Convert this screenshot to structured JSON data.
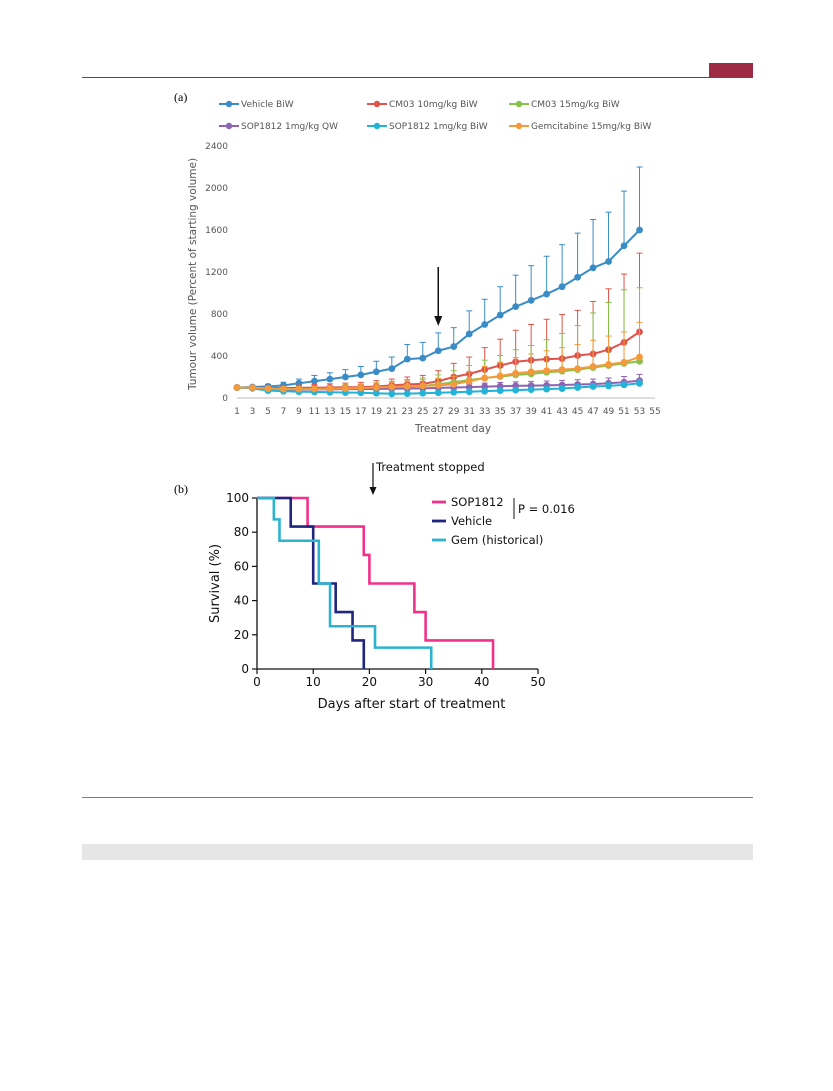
{
  "page": {
    "panel_a_label": "(a)",
    "panel_b_label": "(b)"
  },
  "colors": {
    "rule": "#9e2a44",
    "vehicle_biw": "#3a8cc6",
    "cm03_10": "#e0534a",
    "cm03_15": "#86c24b",
    "sop1812_qw": "#8d63b4",
    "sop1812_biw": "#22b3d6",
    "gem_15": "#f59a3c",
    "km_sop1812": "#f0328a",
    "km_vehicle": "#1f2680",
    "km_gem": "#2bb3cf"
  },
  "chart_data": [
    {
      "type": "line",
      "title": "",
      "xlabel": "Treatment day",
      "ylabel": "Tumour volume (Percent of starting volume)",
      "xlim": [
        1,
        55
      ],
      "ylim": [
        0,
        2400
      ],
      "yticks": [
        "0",
        "400",
        "800",
        "1200",
        "1600",
        "2000",
        "2400"
      ],
      "xticks": [
        "1",
        "3",
        "5",
        "7",
        "9",
        "11",
        "13",
        "15",
        "17",
        "19",
        "21",
        "23",
        "25",
        "27",
        "29",
        "31",
        "33",
        "35",
        "37",
        "39",
        "41",
        "43",
        "45",
        "47",
        "49",
        "51",
        "53",
        "55"
      ],
      "grid": false,
      "legend_position": "top",
      "annotation": "arrow at day 27",
      "x": [
        1,
        3,
        5,
        7,
        9,
        11,
        13,
        15,
        17,
        19,
        21,
        23,
        25,
        27,
        29,
        31,
        33,
        35,
        37,
        39,
        41,
        43,
        45,
        47,
        49,
        51,
        53
      ],
      "series": [
        {
          "name": "Vehicle BiW",
          "color": "#3a8cc6",
          "values": [
            100,
            105,
            110,
            120,
            140,
            160,
            180,
            200,
            220,
            250,
            280,
            370,
            380,
            450,
            490,
            610,
            700,
            790,
            870,
            930,
            990,
            1060,
            1150,
            1240,
            1300,
            1450,
            1600
          ],
          "error": [
            10,
            12,
            20,
            30,
            40,
            55,
            60,
            70,
            80,
            100,
            110,
            140,
            150,
            170,
            180,
            220,
            240,
            270,
            300,
            330,
            360,
            400,
            420,
            460,
            470,
            520,
            600
          ]
        },
        {
          "name": "CM03 10mg/kg BiW",
          "color": "#e0534a",
          "values": [
            100,
            98,
            95,
            95,
            96,
            98,
            100,
            102,
            104,
            110,
            120,
            130,
            135,
            160,
            200,
            230,
            270,
            310,
            345,
            360,
            370,
            375,
            405,
            420,
            460,
            530,
            630
          ],
          "error": [
            8,
            10,
            15,
            20,
            25,
            30,
            35,
            40,
            45,
            55,
            60,
            70,
            80,
            100,
            130,
            160,
            210,
            250,
            300,
            340,
            380,
            420,
            430,
            500,
            580,
            650,
            750
          ]
        },
        {
          "name": "CM03 15mg/kg BiW",
          "color": "#86c24b",
          "values": [
            100,
            95,
            88,
            85,
            85,
            86,
            87,
            88,
            90,
            95,
            100,
            110,
            115,
            130,
            150,
            170,
            190,
            205,
            220,
            230,
            245,
            255,
            270,
            290,
            310,
            330,
            350
          ],
          "error": [
            8,
            10,
            14,
            18,
            22,
            28,
            32,
            38,
            42,
            50,
            58,
            66,
            75,
            90,
            110,
            140,
            170,
            200,
            240,
            270,
            310,
            360,
            420,
            520,
            600,
            700,
            700
          ]
        },
        {
          "name": "SOP1812 1mg/kg QW",
          "color": "#8d63b4",
          "values": [
            100,
            95,
            85,
            80,
            80,
            82,
            82,
            84,
            84,
            86,
            88,
            90,
            92,
            96,
            100,
            104,
            108,
            112,
            116,
            118,
            120,
            124,
            128,
            132,
            140,
            150,
            165
          ],
          "error": [
            5,
            8,
            10,
            12,
            14,
            15,
            16,
            18,
            18,
            20,
            22,
            24,
            26,
            28,
            30,
            32,
            34,
            36,
            38,
            40,
            42,
            44,
            46,
            48,
            50,
            55,
            60
          ]
        },
        {
          "name": "SOP1812 1mg/kg BiW",
          "color": "#22b3d6",
          "values": [
            100,
            92,
            70,
            65,
            60,
            58,
            55,
            52,
            50,
            45,
            40,
            42,
            45,
            50,
            55,
            60,
            65,
            70,
            75,
            80,
            85,
            90,
            100,
            110,
            115,
            125,
            140
          ],
          "error": [
            5,
            8,
            10,
            10,
            10,
            10,
            10,
            10,
            10,
            10,
            10,
            10,
            10,
            12,
            12,
            14,
            15,
            16,
            18,
            20,
            22,
            24,
            26,
            28,
            30,
            32,
            35
          ]
        },
        {
          "name": "Gemcitabine 15mg/kg BiW",
          "color": "#f59a3c",
          "values": [
            100,
            98,
            90,
            85,
            85,
            86,
            88,
            90,
            95,
            100,
            105,
            110,
            115,
            120,
            130,
            160,
            190,
            210,
            235,
            250,
            260,
            270,
            280,
            300,
            320,
            340,
            390
          ],
          "error": [
            8,
            10,
            14,
            18,
            22,
            26,
            30,
            34,
            38,
            42,
            48,
            54,
            60,
            68,
            76,
            90,
            110,
            130,
            150,
            170,
            190,
            210,
            230,
            250,
            270,
            290,
            330
          ]
        }
      ]
    },
    {
      "type": "line",
      "subtype": "kaplan-meier",
      "title": "",
      "xlabel": "Days after start of treatment",
      "ylabel": "Survival (%)",
      "xlim": [
        0,
        50
      ],
      "ylim": [
        0,
        100
      ],
      "xticks": [
        "0",
        "10",
        "20",
        "30",
        "40",
        "50"
      ],
      "yticks": [
        "0",
        "20",
        "40",
        "60",
        "80",
        "100"
      ],
      "annotation": "Treatment stopped",
      "annotation_x": 21,
      "p_value": "P = 0.016",
      "legend_position": "top-right",
      "series": [
        {
          "name": "SOP1812",
          "color": "#f0328a",
          "steps": [
            [
              0,
              100
            ],
            [
              9,
              100
            ],
            [
              9,
              83.3
            ],
            [
              19,
              83.3
            ],
            [
              19,
              66.7
            ],
            [
              20,
              66.7
            ],
            [
              20,
              50
            ],
            [
              28,
              50
            ],
            [
              28,
              33.3
            ],
            [
              30,
              33.3
            ],
            [
              30,
              16.7
            ],
            [
              42,
              16.7
            ],
            [
              42,
              0
            ]
          ]
        },
        {
          "name": "Vehicle",
          "color": "#1f2680",
          "steps": [
            [
              0,
              100
            ],
            [
              6,
              100
            ],
            [
              6,
              83.3
            ],
            [
              10,
              83.3
            ],
            [
              10,
              50
            ],
            [
              14,
              50
            ],
            [
              14,
              33.3
            ],
            [
              17,
              33.3
            ],
            [
              17,
              16.7
            ],
            [
              19,
              16.7
            ],
            [
              19,
              0
            ]
          ]
        },
        {
          "name": "Gem (historical)",
          "color": "#2bb3cf",
          "steps": [
            [
              0,
              100
            ],
            [
              3,
              100
            ],
            [
              3,
              87.5
            ],
            [
              4,
              87.5
            ],
            [
              4,
              75
            ],
            [
              11,
              75
            ],
            [
              11,
              50
            ],
            [
              13,
              50
            ],
            [
              13,
              25
            ],
            [
              21,
              25
            ],
            [
              21,
              12.5
            ],
            [
              31,
              12.5
            ],
            [
              31,
              0
            ]
          ]
        }
      ]
    }
  ]
}
